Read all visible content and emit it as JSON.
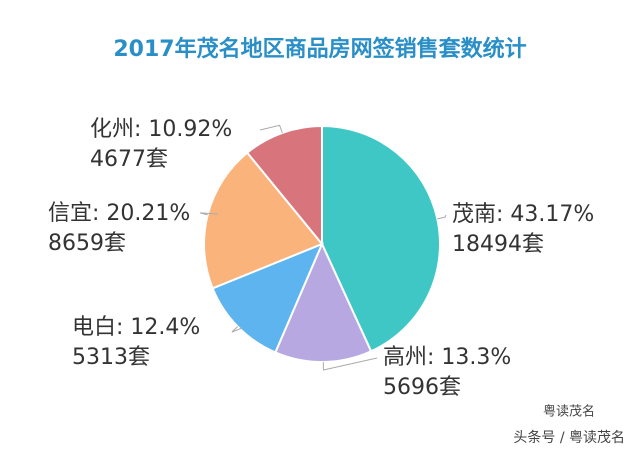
{
  "chart_data": {
    "type": "pie",
    "title": "2017年茂名地区商品房网签销售套数统计",
    "values": [
      43.17,
      13.3,
      12.4,
      20.21,
      10.92
    ],
    "value_labels": [
      "茂南: 43.17%",
      "高州: 13.3%",
      "电白: 12.4%",
      "信宜: 20.21%",
      "化州: 10.92%"
    ],
    "counts": [
      18494,
      5696,
      5313,
      8659,
      4677
    ],
    "count_labels": [
      "18494套",
      "5696套",
      "5313套",
      "8659套",
      "4677套"
    ],
    "colors": [
      "#3ec7c5",
      "#b7a8e2",
      "#5db4ee",
      "#fbb37c",
      "#d8757c"
    ],
    "watermark": [
      "粤读茂名",
      "头条号 / 粤读茂名"
    ]
  }
}
